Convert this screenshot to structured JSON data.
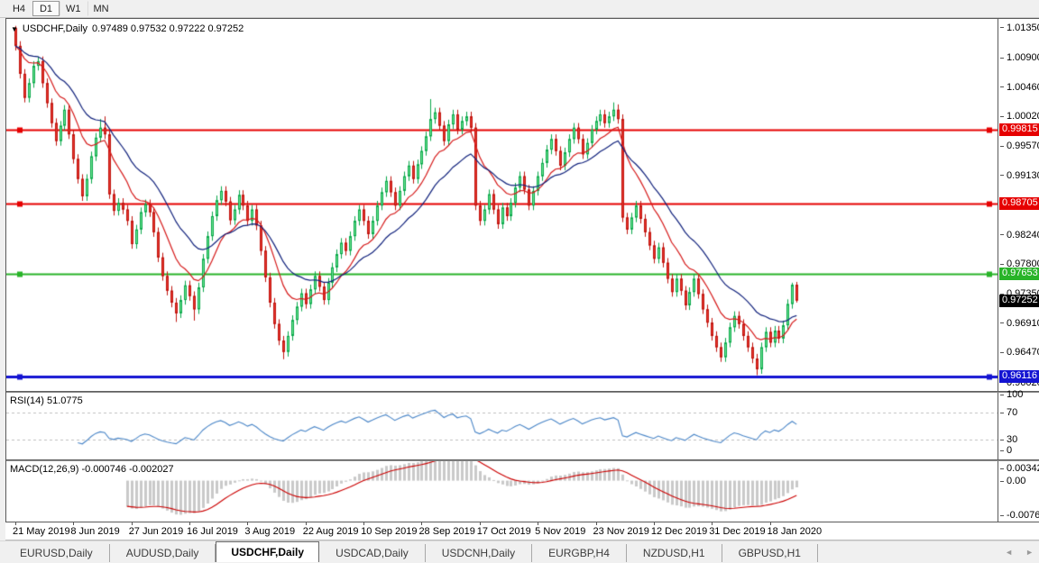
{
  "toolbar": {
    "timeframes": [
      {
        "label": "H4",
        "active": false
      },
      {
        "label": "D1",
        "active": true
      },
      {
        "label": "W1",
        "active": false
      },
      {
        "label": "MN",
        "active": false
      }
    ]
  },
  "chart_data": {
    "type": "candlestick",
    "symbol_label": "USDCHF,Daily",
    "ohlc_display": "0.97489 0.97532 0.97222 0.97252",
    "open": "0.97489",
    "high": "0.97532",
    "low": "0.97222",
    "close": "0.97252",
    "y_range": [
      0.95893,
      1.01485
    ],
    "y_ticks": [
      "1.01350",
      "1.00900",
      "1.00460",
      "1.00020",
      "0.99570",
      "0.99130",
      "0.98240",
      "0.97800",
      "0.97350",
      "0.96910",
      "0.96470",
      "0.96020"
    ],
    "h_lines": [
      {
        "price": 0.99815,
        "label": "0.99815",
        "color": "#e60000",
        "width": 2
      },
      {
        "price": 0.98705,
        "label": "0.98705",
        "color": "#e60000",
        "width": 2
      },
      {
        "price": 0.97653,
        "label": "0.97653",
        "color": "#28b428",
        "width": 2
      },
      {
        "price": 0.96116,
        "label": "0.96116",
        "color": "#1414d2",
        "width": 3
      }
    ],
    "current_price": {
      "value": 0.97252,
      "label": "0.97252",
      "color": "#000000"
    },
    "x_labels": [
      {
        "text": "21 May 2019",
        "day": 0
      },
      {
        "text": "8 Jun 2019",
        "day": 13
      },
      {
        "text": "27 Jun 2019",
        "day": 26
      },
      {
        "text": "16 Jul 2019",
        "day": 39
      },
      {
        "text": "3 Aug 2019",
        "day": 52
      },
      {
        "text": "22 Aug 2019",
        "day": 65
      },
      {
        "text": "10 Sep 2019",
        "day": 78
      },
      {
        "text": "28 Sep 2019",
        "day": 91
      },
      {
        "text": "17 Oct 2019",
        "day": 104
      },
      {
        "text": "5 Nov 2019",
        "day": 117
      },
      {
        "text": "23 Nov 2019",
        "day": 130
      },
      {
        "text": "12 Dec 2019",
        "day": 143
      },
      {
        "text": "31 Dec 2019",
        "day": 156
      },
      {
        "text": "18 Jan 2020",
        "day": 169
      }
    ],
    "candle_colors": {
      "bull_fill": "#6fe591",
      "bull_edge": "#0aa84b",
      "bear_fill": "#e8352c",
      "bear_edge": "#c01510"
    },
    "ma_fast": {
      "type": "ema",
      "period": 11,
      "color": "#d61a1a"
    },
    "ma_slow": {
      "type": "ema",
      "period": 22,
      "color": "#10217c"
    },
    "candles": [
      [
        1.0135,
        1.0138,
        1.0101,
        1.0108
      ],
      [
        1.0108,
        1.0115,
        1.0059,
        1.0066
      ],
      [
        1.0066,
        1.0073,
        1.0023,
        1.003
      ],
      [
        1.003,
        1.0059,
        1.0023,
        1.0052
      ],
      [
        1.0052,
        1.0085,
        1.0045,
        1.0078
      ],
      [
        1.0078,
        1.0092,
        1.0071,
        1.0085
      ],
      [
        1.0085,
        1.0092,
        1.0045,
        1.0052
      ],
      [
        1.0052,
        1.0059,
        1.0015,
        1.0022
      ],
      [
        1.0022,
        1.0029,
        0.9985,
        0.9992
      ],
      [
        0.9992,
        0.9999,
        0.9958,
        0.9965
      ],
      [
        0.9965,
        0.9995,
        0.9958,
        0.9988
      ],
      [
        0.9988,
        1.0019,
        0.9981,
        1.0012
      ],
      [
        1.0012,
        1.0019,
        0.9968,
        0.9975
      ],
      [
        0.9975,
        0.9982,
        0.9931,
        0.9938
      ],
      [
        0.9938,
        0.9945,
        0.9901,
        0.9908
      ],
      [
        0.9908,
        0.9915,
        0.9875,
        0.9882
      ],
      [
        0.9882,
        0.9915,
        0.9875,
        0.9908
      ],
      [
        0.9908,
        0.9949,
        0.9901,
        0.9942
      ],
      [
        0.9942,
        0.9977,
        0.9935,
        0.997
      ],
      [
        0.997,
        0.9998,
        0.9963,
        0.9985
      ],
      [
        0.9985,
        1.0002,
        0.9968,
        0.9975
      ],
      [
        0.9975,
        0.9982,
        0.9878,
        0.9885
      ],
      [
        0.9885,
        0.9892,
        0.9853,
        0.986
      ],
      [
        0.986,
        0.9879,
        0.9853,
        0.9872
      ],
      [
        0.9872,
        0.9879,
        0.9855,
        0.9862
      ],
      [
        0.9862,
        0.9869,
        0.9838,
        0.9845
      ],
      [
        0.9845,
        0.9852,
        0.9803,
        0.981
      ],
      [
        0.981,
        0.9839,
        0.9803,
        0.9832
      ],
      [
        0.9832,
        0.9865,
        0.9825,
        0.9858
      ],
      [
        0.9858,
        0.9877,
        0.9851,
        0.987
      ],
      [
        0.987,
        0.9877,
        0.9851,
        0.9858
      ],
      [
        0.9858,
        0.9865,
        0.9821,
        0.9828
      ],
      [
        0.9828,
        0.9835,
        0.9783,
        0.979
      ],
      [
        0.979,
        0.9797,
        0.9755,
        0.9762
      ],
      [
        0.9762,
        0.9769,
        0.9733,
        0.974
      ],
      [
        0.974,
        0.9747,
        0.9715,
        0.9722
      ],
      [
        0.9722,
        0.9729,
        0.9693,
        0.9706
      ],
      [
        0.9706,
        0.9733,
        0.9699,
        0.9726
      ],
      [
        0.9726,
        0.9755,
        0.9719,
        0.9748
      ],
      [
        0.9748,
        0.9755,
        0.9725,
        0.9732
      ],
      [
        0.9732,
        0.9739,
        0.9695,
        0.9712
      ],
      [
        0.9712,
        0.9752,
        0.9705,
        0.9745
      ],
      [
        0.9745,
        0.9795,
        0.9738,
        0.9788
      ],
      [
        0.9788,
        0.9829,
        0.9781,
        0.9822
      ],
      [
        0.9822,
        0.9859,
        0.9815,
        0.9852
      ],
      [
        0.9852,
        0.9883,
        0.9845,
        0.9876
      ],
      [
        0.9876,
        0.9897,
        0.9869,
        0.989
      ],
      [
        0.989,
        0.9897,
        0.9867,
        0.9874
      ],
      [
        0.9874,
        0.9881,
        0.9839,
        0.9846
      ],
      [
        0.9846,
        0.9869,
        0.9839,
        0.9862
      ],
      [
        0.9862,
        0.9891,
        0.9855,
        0.9884
      ],
      [
        0.9884,
        0.9891,
        0.9861,
        0.9868
      ],
      [
        0.9868,
        0.9875,
        0.9838,
        0.9845
      ],
      [
        0.9845,
        0.9869,
        0.9838,
        0.9862
      ],
      [
        0.9862,
        0.9869,
        0.9831,
        0.9838
      ],
      [
        0.9838,
        0.9845,
        0.9793,
        0.98
      ],
      [
        0.98,
        0.9807,
        0.9753,
        0.976
      ],
      [
        0.976,
        0.9767,
        0.9715,
        0.9722
      ],
      [
        0.9722,
        0.9729,
        0.9683,
        0.969
      ],
      [
        0.969,
        0.9697,
        0.9658,
        0.9665
      ],
      [
        0.9665,
        0.9672,
        0.9637,
        0.9648
      ],
      [
        0.9648,
        0.9679,
        0.9641,
        0.9672
      ],
      [
        0.9672,
        0.9703,
        0.9665,
        0.9696
      ],
      [
        0.9696,
        0.9723,
        0.9689,
        0.9716
      ],
      [
        0.9716,
        0.9743,
        0.9709,
        0.9736
      ],
      [
        0.9736,
        0.9743,
        0.9713,
        0.972
      ],
      [
        0.972,
        0.9749,
        0.9713,
        0.9742
      ],
      [
        0.9742,
        0.9769,
        0.9735,
        0.9762
      ],
      [
        0.9762,
        0.9769,
        0.9739,
        0.9746
      ],
      [
        0.9746,
        0.9753,
        0.9719,
        0.9726
      ],
      [
        0.9726,
        0.9759,
        0.9719,
        0.9752
      ],
      [
        0.9752,
        0.9782,
        0.9745,
        0.9775
      ],
      [
        0.9775,
        0.9802,
        0.9768,
        0.9795
      ],
      [
        0.9795,
        0.9819,
        0.9788,
        0.9812
      ],
      [
        0.9812,
        0.9819,
        0.9793,
        0.98
      ],
      [
        0.98,
        0.9829,
        0.9793,
        0.9822
      ],
      [
        0.9822,
        0.9852,
        0.9815,
        0.9845
      ],
      [
        0.9845,
        0.9869,
        0.9838,
        0.9862
      ],
      [
        0.9862,
        0.9869,
        0.9838,
        0.9845
      ],
      [
        0.9845,
        0.9852,
        0.9818,
        0.9825
      ],
      [
        0.9825,
        0.9852,
        0.9818,
        0.9845
      ],
      [
        0.9845,
        0.9875,
        0.9838,
        0.9868
      ],
      [
        0.9868,
        0.9895,
        0.9861,
        0.9888
      ],
      [
        0.9888,
        0.9912,
        0.9881,
        0.9905
      ],
      [
        0.9905,
        0.9912,
        0.9881,
        0.9888
      ],
      [
        0.9888,
        0.9895,
        0.9861,
        0.9868
      ],
      [
        0.9868,
        0.9897,
        0.9861,
        0.989
      ],
      [
        0.989,
        0.9919,
        0.9883,
        0.9912
      ],
      [
        0.9912,
        0.9935,
        0.9905,
        0.9928
      ],
      [
        0.9928,
        0.9935,
        0.9901,
        0.9908
      ],
      [
        0.9908,
        0.9937,
        0.9901,
        0.993
      ],
      [
        0.993,
        0.9957,
        0.9923,
        0.995
      ],
      [
        0.995,
        0.9979,
        0.9943,
        0.9972
      ],
      [
        0.9972,
        1.0028,
        0.9965,
        0.9998
      ],
      [
        0.9998,
        1.0015,
        0.9991,
        1.0008
      ],
      [
        1.0008,
        1.0015,
        0.9981,
        0.9988
      ],
      [
        0.9988,
        0.9995,
        0.9958,
        0.9965
      ],
      [
        0.9965,
        0.9997,
        0.9958,
        0.999
      ],
      [
        0.999,
        1.0012,
        0.9983,
        1.0005
      ],
      [
        1.0005,
        1.0012,
        0.9975,
        0.9982
      ],
      [
        0.9982,
        1.0002,
        0.9975,
        0.9995
      ],
      [
        0.9995,
        1.0009,
        0.9988,
        1.0002
      ],
      [
        1.0002,
        1.0009,
        0.9978,
        0.9985
      ],
      [
        0.9985,
        0.9992,
        0.9861,
        0.9868
      ],
      [
        0.9868,
        0.9875,
        0.9838,
        0.9845
      ],
      [
        0.9845,
        0.9869,
        0.9838,
        0.9862
      ],
      [
        0.9862,
        0.9892,
        0.9855,
        0.9885
      ],
      [
        0.9885,
        0.9892,
        0.9855,
        0.9862
      ],
      [
        0.9862,
        0.9869,
        0.9833,
        0.984
      ],
      [
        0.984,
        0.9872,
        0.9833,
        0.9865
      ],
      [
        0.9865,
        0.9872,
        0.9845,
        0.9852
      ],
      [
        0.9852,
        0.9879,
        0.9845,
        0.9872
      ],
      [
        0.9872,
        0.9902,
        0.9865,
        0.9895
      ],
      [
        0.9895,
        0.9919,
        0.9888,
        0.9912
      ],
      [
        0.9912,
        0.9919,
        0.9885,
        0.9892
      ],
      [
        0.9892,
        0.9899,
        0.9861,
        0.9868
      ],
      [
        0.9868,
        0.9897,
        0.9861,
        0.989
      ],
      [
        0.989,
        0.9919,
        0.9883,
        0.9912
      ],
      [
        0.9912,
        0.9939,
        0.9905,
        0.9932
      ],
      [
        0.9932,
        0.9959,
        0.9925,
        0.9952
      ],
      [
        0.9952,
        0.9975,
        0.9945,
        0.9968
      ],
      [
        0.9968,
        0.9975,
        0.9943,
        0.995
      ],
      [
        0.995,
        0.9957,
        0.9921,
        0.9928
      ],
      [
        0.9928,
        0.9955,
        0.9921,
        0.9948
      ],
      [
        0.9948,
        0.9975,
        0.9941,
        0.9968
      ],
      [
        0.9968,
        0.9992,
        0.9961,
        0.9985
      ],
      [
        0.9985,
        0.9992,
        0.9961,
        0.9968
      ],
      [
        0.9968,
        0.9975,
        0.9938,
        0.9945
      ],
      [
        0.9945,
        0.9969,
        0.9938,
        0.9962
      ],
      [
        0.9962,
        0.9989,
        0.9955,
        0.9982
      ],
      [
        0.9982,
        1.0002,
        0.9975,
        0.9995
      ],
      [
        0.9995,
        1.0012,
        0.9988,
        1.0005
      ],
      [
        1.0005,
        1.0012,
        0.9985,
        0.9992
      ],
      [
        0.9992,
        1.0009,
        0.9985,
        1.0002
      ],
      [
        1.0002,
        1.0023,
        0.9995,
        1.0012
      ],
      [
        1.0012,
        1.002,
        0.9991,
        0.9998
      ],
      [
        0.9998,
        1.0005,
        0.9843,
        0.985
      ],
      [
        0.985,
        0.9857,
        0.9825,
        0.9832
      ],
      [
        0.9832,
        0.9857,
        0.9825,
        0.985
      ],
      [
        0.985,
        0.9875,
        0.9843,
        0.9868
      ],
      [
        0.9868,
        0.9875,
        0.9841,
        0.9848
      ],
      [
        0.9848,
        0.9855,
        0.9821,
        0.9828
      ],
      [
        0.9828,
        0.9835,
        0.9801,
        0.9808
      ],
      [
        0.9808,
        0.9815,
        0.9781,
        0.9788
      ],
      [
        0.9788,
        0.9812,
        0.9781,
        0.9805
      ],
      [
        0.9805,
        0.9812,
        0.9775,
        0.9782
      ],
      [
        0.9782,
        0.9789,
        0.9751,
        0.9758
      ],
      [
        0.9758,
        0.9765,
        0.9731,
        0.9738
      ],
      [
        0.9738,
        0.9765,
        0.9731,
        0.9758
      ],
      [
        0.9758,
        0.9765,
        0.9733,
        0.974
      ],
      [
        0.974,
        0.9747,
        0.9711,
        0.9718
      ],
      [
        0.9718,
        0.9745,
        0.9711,
        0.9738
      ],
      [
        0.9738,
        0.9765,
        0.9731,
        0.9758
      ],
      [
        0.9758,
        0.9765,
        0.9728,
        0.9735
      ],
      [
        0.9735,
        0.9742,
        0.9705,
        0.9712
      ],
      [
        0.9712,
        0.9719,
        0.9685,
        0.9692
      ],
      [
        0.9692,
        0.9699,
        0.9665,
        0.9672
      ],
      [
        0.9672,
        0.9679,
        0.9648,
        0.9655
      ],
      [
        0.9655,
        0.9662,
        0.9633,
        0.964
      ],
      [
        0.964,
        0.9669,
        0.9633,
        0.9662
      ],
      [
        0.9662,
        0.9692,
        0.9655,
        0.9685
      ],
      [
        0.9685,
        0.9709,
        0.9678,
        0.9702
      ],
      [
        0.9702,
        0.9709,
        0.9683,
        0.969
      ],
      [
        0.969,
        0.9697,
        0.9665,
        0.9672
      ],
      [
        0.9672,
        0.9679,
        0.9648,
        0.9655
      ],
      [
        0.9655,
        0.9662,
        0.9631,
        0.9638
      ],
      [
        0.9638,
        0.9645,
        0.9613,
        0.9622
      ],
      [
        0.9622,
        0.9662,
        0.9615,
        0.9655
      ],
      [
        0.9655,
        0.9685,
        0.9648,
        0.9678
      ],
      [
        0.9678,
        0.9685,
        0.9655,
        0.9662
      ],
      [
        0.9662,
        0.9687,
        0.9655,
        0.968
      ],
      [
        0.968,
        0.9687,
        0.9661,
        0.9668
      ],
      [
        0.9668,
        0.9695,
        0.9661,
        0.9688
      ],
      [
        0.9688,
        0.9727,
        0.9681,
        0.972
      ],
      [
        0.972,
        0.9752,
        0.9713,
        0.9749
      ],
      [
        0.97489,
        0.97532,
        0.97222,
        0.97252
      ]
    ],
    "rsi": {
      "label": "RSI(14) 51.0775",
      "period": 14,
      "current": "51.0775",
      "axis_labels": [
        "100",
        "70",
        "30",
        "0"
      ],
      "levels": [
        70,
        30
      ],
      "line_color": "#4a86c8"
    },
    "macd": {
      "label": "MACD(12,26,9) -0.000746 -0.002027",
      "fast": 12,
      "slow": 26,
      "signal": 9,
      "values_display": [
        "-0.000746",
        "-0.002027"
      ],
      "axis_labels": [
        "0.003428",
        "0.00",
        "-0.007615"
      ],
      "range": [
        -0.008,
        0.0038
      ],
      "hist_color": "#c9c9c9",
      "signal_color": "#cc0000"
    }
  },
  "tabs": {
    "items": [
      {
        "label": "EURUSD,Daily",
        "active": false
      },
      {
        "label": "AUDUSD,Daily",
        "active": false
      },
      {
        "label": "USDCHF,Daily",
        "active": true
      },
      {
        "label": "USDCAD,Daily",
        "active": false
      },
      {
        "label": "USDCNH,Daily",
        "active": false
      },
      {
        "label": "EURGBP,H4",
        "active": false
      },
      {
        "label": "NZDUSD,H1",
        "active": false
      },
      {
        "label": "GBPUSD,H1",
        "active": false
      }
    ],
    "scroll_left": "◄",
    "scroll_right": "►"
  }
}
